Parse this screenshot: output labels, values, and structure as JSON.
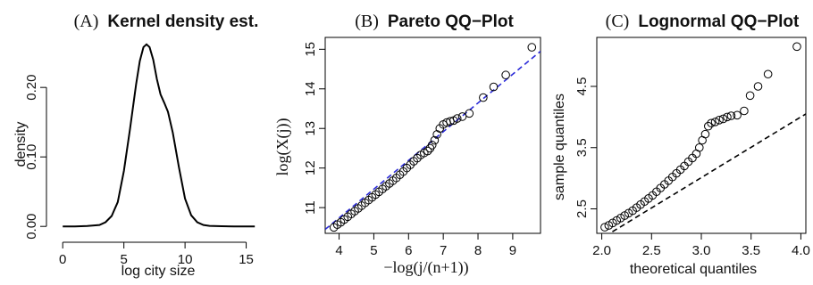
{
  "chart_data": [
    {
      "type": "line",
      "panel_label": "(A)",
      "title": "Kernel density est.",
      "xlabel": "log city size",
      "ylabel": "density",
      "xlim": [
        -0.6,
        16.2
      ],
      "ylim": [
        -0.01,
        0.272
      ],
      "xticks": [
        0,
        5,
        10,
        15
      ],
      "yticks": [
        0.0,
        0.1,
        0.2
      ],
      "ytick_labels": [
        "0.00",
        "0.10",
        "0.20"
      ],
      "frame": false,
      "series": [
        {
          "x": [
            0,
            1,
            2,
            3,
            3.5,
            4,
            4.5,
            5,
            5.5,
            6,
            6.3,
            6.6,
            6.85,
            7.1,
            7.4,
            7.7,
            8.0,
            8.3,
            8.6,
            9.0,
            9.5,
            10.0,
            10.5,
            11.0,
            11.5,
            12,
            13,
            14,
            15.7
          ],
          "values": [
            0.0,
            0.0,
            0.0005,
            0.002,
            0.006,
            0.015,
            0.035,
            0.08,
            0.14,
            0.205,
            0.238,
            0.258,
            0.262,
            0.258,
            0.24,
            0.212,
            0.19,
            0.178,
            0.165,
            0.135,
            0.085,
            0.04,
            0.016,
            0.006,
            0.002,
            0.0008,
            0.0002,
            0.0,
            0.0
          ]
        }
      ]
    },
    {
      "type": "scatter",
      "panel_label": "(B)",
      "title": "Pareto QQ−Plot",
      "xlabel": "−log(j/(n+1))",
      "ylabel": "log(X(j))",
      "xlim": [
        3.6,
        9.8
      ],
      "ylim": [
        10.35,
        15.3
      ],
      "xticks": [
        4,
        5,
        6,
        7,
        8,
        9
      ],
      "yticks": [
        11,
        12,
        13,
        14,
        15
      ],
      "frame": true,
      "reference_line": {
        "color": "#2b2bd8",
        "style": "dashed",
        "x": [
          3.6,
          9.8
        ],
        "y": [
          10.45,
          14.95
        ]
      },
      "series": [
        {
          "x": [
            3.85,
            3.95,
            4.05,
            4.15,
            4.25,
            4.35,
            4.45,
            4.55,
            4.65,
            4.75,
            4.85,
            4.95,
            5.05,
            5.15,
            5.25,
            5.35,
            5.45,
            5.55,
            5.65,
            5.75,
            5.85,
            5.95,
            6.05,
            6.15,
            6.25,
            6.35,
            6.45,
            6.55,
            6.62,
            6.68,
            6.75,
            6.82,
            6.9,
            7.0,
            7.1,
            7.2,
            7.3,
            7.4,
            7.55,
            7.75,
            8.15,
            8.45,
            8.8,
            9.55
          ],
          "values": [
            10.5,
            10.57,
            10.63,
            10.7,
            10.77,
            10.84,
            10.91,
            10.98,
            11.05,
            11.12,
            11.19,
            11.26,
            11.33,
            11.4,
            11.47,
            11.54,
            11.61,
            11.68,
            11.75,
            11.83,
            11.91,
            12.0,
            12.08,
            12.17,
            12.25,
            12.33,
            12.38,
            12.43,
            12.5,
            12.58,
            12.7,
            12.85,
            13.0,
            13.1,
            13.15,
            13.18,
            13.2,
            13.25,
            13.3,
            13.38,
            13.78,
            14.05,
            14.35,
            15.05
          ]
        }
      ]
    },
    {
      "type": "scatter",
      "panel_label": "(C)",
      "title": "Lognormal QQ−Plot",
      "xlabel": "theoretical quantiles",
      "ylabel": "sample quantiles",
      "xlim": [
        1.95,
        4.05
      ],
      "ylim": [
        2.1,
        5.3
      ],
      "xticks": [
        2.0,
        2.5,
        3.0,
        3.5,
        4.0
      ],
      "xtick_labels": [
        "2.0",
        "2.5",
        "3.0",
        "3.5",
        "4.0"
      ],
      "yticks": [
        2.5,
        3.5,
        4.5
      ],
      "ytick_labels": [
        "2.5",
        "3.5",
        "4.5"
      ],
      "frame": true,
      "reference_line": {
        "color": "#000000",
        "style": "dashed",
        "x": [
          2.03,
          4.05
        ],
        "y": [
          2.05,
          4.05
        ]
      },
      "series": [
        {
          "x": [
            2.03,
            2.07,
            2.11,
            2.15,
            2.19,
            2.23,
            2.27,
            2.31,
            2.35,
            2.39,
            2.43,
            2.47,
            2.51,
            2.55,
            2.59,
            2.63,
            2.67,
            2.71,
            2.75,
            2.79,
            2.83,
            2.87,
            2.91,
            2.95,
            2.98,
            3.01,
            3.04,
            3.07,
            3.1,
            3.14,
            3.18,
            3.22,
            3.26,
            3.3,
            3.36,
            3.43,
            3.49,
            3.57,
            3.67,
            3.96
          ],
          "values": [
            2.2,
            2.23,
            2.27,
            2.31,
            2.35,
            2.39,
            2.43,
            2.47,
            2.52,
            2.57,
            2.62,
            2.67,
            2.72,
            2.78,
            2.84,
            2.9,
            2.96,
            3.02,
            3.08,
            3.14,
            3.2,
            3.27,
            3.33,
            3.4,
            3.5,
            3.62,
            3.72,
            3.85,
            3.9,
            3.92,
            3.95,
            3.97,
            4.0,
            4.02,
            4.03,
            4.1,
            4.35,
            4.5,
            4.7,
            5.15
          ]
        }
      ]
    }
  ]
}
